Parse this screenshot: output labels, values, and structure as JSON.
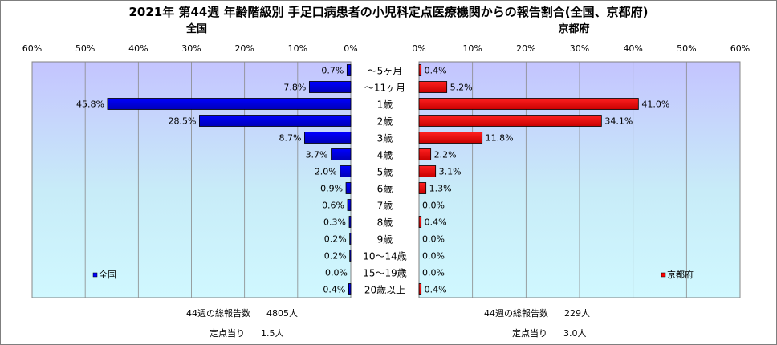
{
  "title": "2021年 第44週 年齢階級別 手足口病患者の小児科定点医療機関からの報告割合(全国、京都府)",
  "chart_data": [
    {
      "type": "bar",
      "orientation": "horizontal-left",
      "subtitle": "全国",
      "legend_label": "全国",
      "legend_position": "bottom-left",
      "color": "#0000ff",
      "xlim": [
        0,
        60
      ],
      "ticks": [
        "60%",
        "50%",
        "40%",
        "30%",
        "20%",
        "10%",
        "0%"
      ],
      "tick_values": [
        60,
        50,
        40,
        30,
        20,
        10,
        0
      ],
      "categories": [
        "～5ヶ月",
        "～11ヶ月",
        "1歳",
        "2歳",
        "3歳",
        "4歳",
        "5歳",
        "6歳",
        "7歳",
        "8歳",
        "9歳",
        "10～14歳",
        "15～19歳",
        "20歳以上"
      ],
      "values": [
        0.7,
        7.8,
        45.8,
        28.5,
        8.7,
        3.7,
        2.0,
        0.9,
        0.6,
        0.3,
        0.2,
        0.2,
        0.0,
        0.4
      ],
      "labels": [
        "0.7%",
        "7.8%",
        "45.8%",
        "28.5%",
        "8.7%",
        "3.7%",
        "2.0%",
        "0.9%",
        "0.6%",
        "0.3%",
        "0.2%",
        "0.2%",
        "0.0%",
        "0.4%"
      ]
    },
    {
      "type": "bar",
      "orientation": "horizontal-right",
      "subtitle": "京都府",
      "legend_label": "京都府",
      "legend_position": "bottom-right",
      "color": "#ff0000",
      "xlim": [
        0,
        60
      ],
      "ticks": [
        "0%",
        "10%",
        "20%",
        "30%",
        "40%",
        "50%",
        "60%"
      ],
      "tick_values": [
        0,
        10,
        20,
        30,
        40,
        50,
        60
      ],
      "categories": [
        "～5ヶ月",
        "～11ヶ月",
        "1歳",
        "2歳",
        "3歳",
        "4歳",
        "5歳",
        "6歳",
        "7歳",
        "8歳",
        "9歳",
        "10～14歳",
        "15～19歳",
        "20歳以上"
      ],
      "values": [
        0.4,
        5.2,
        41.0,
        34.1,
        11.8,
        2.2,
        3.1,
        1.3,
        0.0,
        0.4,
        0.0,
        0.0,
        0.0,
        0.4
      ],
      "labels": [
        "0.4%",
        "5.2%",
        "41.0%",
        "34.1%",
        "11.8%",
        "2.2%",
        "3.1%",
        "1.3%",
        "0.0%",
        "0.4%",
        "0.0%",
        "0.0%",
        "0.0%",
        "0.4%"
      ]
    }
  ],
  "summary": {
    "national": {
      "total_label": "44週の総報告数",
      "total_value": "4805人",
      "per_label": "定点当り",
      "per_value": "1.5人"
    },
    "kyoto": {
      "total_label": "44週の総報告数",
      "total_value": "229人",
      "per_label": "定点当り",
      "per_value": "3.0人"
    }
  }
}
